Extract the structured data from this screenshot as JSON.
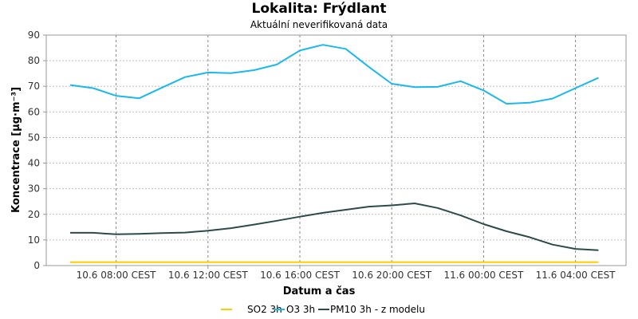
{
  "chart_data": {
    "type": "line",
    "title": "Lokalita: Frýdlant",
    "subtitle": "Aktuální neverifikovaná data",
    "xlabel": "Datum a čas",
    "ylabel": "Koncentrace [µg·m⁻³]",
    "ylim": [
      0,
      90
    ],
    "yticks": [
      0,
      10,
      20,
      30,
      40,
      50,
      60,
      70,
      80,
      90
    ],
    "xticks": [
      "10.6 08:00 CEST",
      "10.6 12:00 CEST",
      "10.6 16:00 CEST",
      "10.6 20:00 CEST",
      "11.6 00:00 CEST",
      "11.6 04:00 CEST"
    ],
    "x": [
      "10.6 06:00",
      "10.6 07:00",
      "10.6 08:00",
      "10.6 09:00",
      "10.6 10:00",
      "10.6 11:00",
      "10.6 12:00",
      "10.6 13:00",
      "10.6 14:00",
      "10.6 15:00",
      "10.6 16:00",
      "10.6 17:00",
      "10.6 18:00",
      "10.6 19:00",
      "10.6 20:00",
      "10.6 21:00",
      "10.6 22:00",
      "10.6 23:00",
      "11.6 00:00",
      "11.6 01:00",
      "11.6 02:00",
      "11.6 03:00",
      "11.6 04:00",
      "11.6 05:00"
    ],
    "grid": true,
    "legend": "bottom",
    "series": [
      {
        "name": "SO2 3h",
        "color": "#ffcc00",
        "values": [
          1.3,
          1.3,
          1.3,
          1.3,
          1.3,
          1.3,
          1.3,
          1.3,
          1.3,
          1.3,
          1.3,
          1.3,
          1.3,
          1.3,
          1.3,
          1.3,
          1.3,
          1.3,
          1.3,
          1.3,
          1.3,
          1.3,
          1.3,
          1.3
        ]
      },
      {
        "name": "O3 3h",
        "color": "#1ab8ee",
        "values": [
          70.5,
          69.3,
          66.3,
          65.3,
          69.5,
          73.6,
          75.4,
          75.1,
          76.3,
          78.5,
          84.0,
          86.2,
          84.6,
          77.6,
          71.0,
          69.7,
          69.8,
          72.0,
          68.4,
          63.2,
          63.6,
          65.2,
          69.3,
          73.3
        ]
      },
      {
        "name": "PM10 3h - z modelu",
        "color": "#2d4a4a",
        "values": [
          12.8,
          12.8,
          12.2,
          12.4,
          12.7,
          12.9,
          13.6,
          14.6,
          16.0,
          17.5,
          19.1,
          20.6,
          21.8,
          23.0,
          23.5,
          24.3,
          22.5,
          19.6,
          16.2,
          13.4,
          11.1,
          8.2,
          6.5,
          6.0
        ]
      }
    ]
  }
}
